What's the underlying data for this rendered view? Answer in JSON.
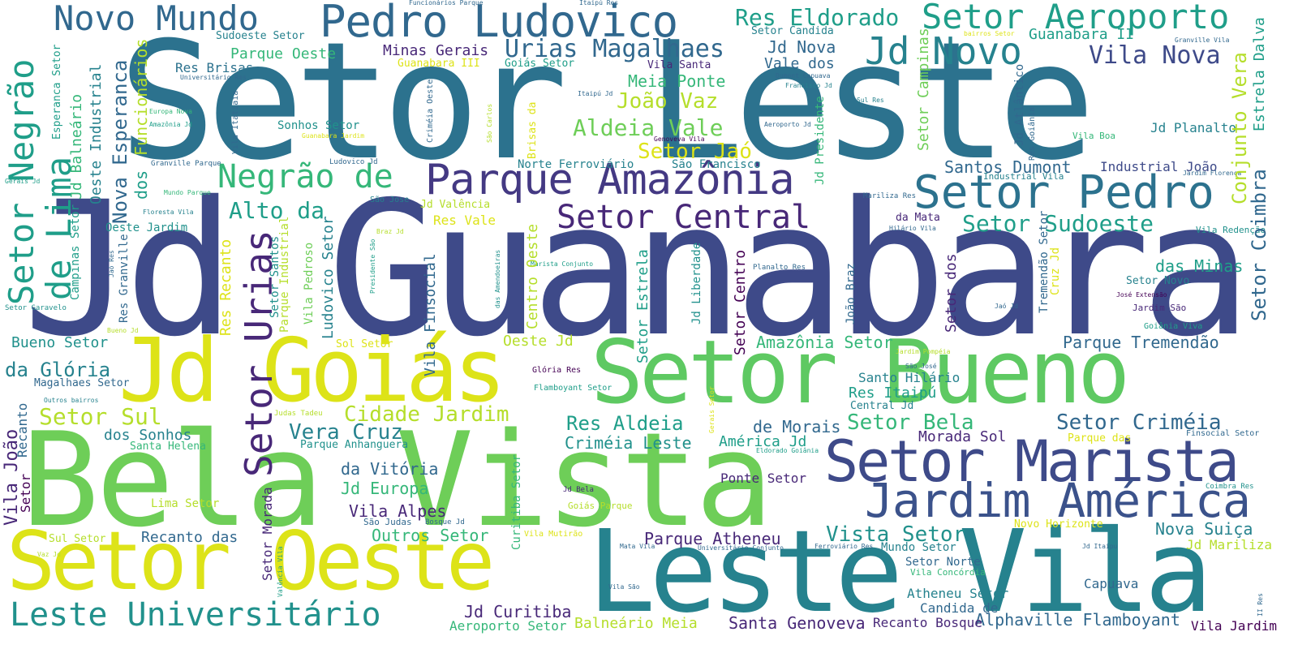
{
  "palette": {
    "dark_purple": "#440154",
    "indigo": "#3e4a89",
    "slate_blue": "#31688e",
    "teal": "#26828e",
    "sea_green": "#1f9e89",
    "green": "#35b779",
    "light_green": "#6ece58",
    "lime": "#b5de2b",
    "yellow": "#dde318",
    "background": "#ffffff"
  },
  "words": [
    {
      "text": "Jd Guanabara"
    },
    {
      "text": "Setor Leste"
    },
    {
      "text": "Bela Vista"
    },
    {
      "text": "Setor Bueno"
    },
    {
      "text": "Jd Goiás"
    },
    {
      "text": "Setor Oeste"
    },
    {
      "text": "Leste Vila"
    },
    {
      "text": "Setor Marista"
    },
    {
      "text": "Jardim América"
    },
    {
      "text": "Pedro Ludovico"
    },
    {
      "text": "Novo Mundo"
    },
    {
      "text": "Setor Aeroporto"
    },
    {
      "text": "Parque Amazônia"
    },
    {
      "text": "Setor Pedro"
    },
    {
      "text": "Setor Central"
    },
    {
      "text": "Negrão de"
    },
    {
      "text": "Leste Universitário"
    },
    {
      "text": "Jd Novo"
    },
    {
      "text": "Res Eldorado"
    },
    {
      "text": "Urias Magalhaes"
    },
    {
      "text": "Vila Nova"
    },
    {
      "text": "Aldeia Vale"
    },
    {
      "text": "João Vaz"
    },
    {
      "text": "Setor Jaó"
    },
    {
      "text": "Meia Ponte"
    },
    {
      "text": "Alto da"
    },
    {
      "text": "Setor Sudoeste"
    },
    {
      "text": "Santos Dumont"
    },
    {
      "text": "Industrial João"
    },
    {
      "text": "Jd Planalto"
    },
    {
      "text": "Cidade Jardim"
    },
    {
      "text": "Setor Sul"
    },
    {
      "text": "Vera Cruz"
    },
    {
      "text": "Res Aldeia"
    },
    {
      "text": "Setor Bela"
    },
    {
      "text": "Setor Criméia"
    },
    {
      "text": "Criméia Leste"
    },
    {
      "text": "Morada Sol"
    },
    {
      "text": "América Jd"
    },
    {
      "text": "de Morais"
    },
    {
      "text": "da Glória"
    },
    {
      "text": "Bueno Setor"
    },
    {
      "text": "Amazônia Setor"
    },
    {
      "text": "Parque Tremendão"
    },
    {
      "text": "das Minas"
    },
    {
      "text": "Santo Hilário"
    },
    {
      "text": "Res Itaipú"
    },
    {
      "text": "Vista Setor"
    },
    {
      "text": "Parque Atheneu"
    },
    {
      "text": "Ponte Setor"
    },
    {
      "text": "Nova Suiça"
    },
    {
      "text": "Jd Marilizа"
    },
    {
      "text": "Outros Setor"
    },
    {
      "text": "Recanto das"
    },
    {
      "text": "Vila Alpes"
    },
    {
      "text": "Jd Europa"
    },
    {
      "text": "da Vitória"
    },
    {
      "text": "Jd Curitiba"
    },
    {
      "text": "Santa Genoveva"
    },
    {
      "text": "Alphaville Flamboyant"
    },
    {
      "text": "Balneário Meia"
    },
    {
      "text": "Aeroporto Setor"
    },
    {
      "text": "Recanto Bosque"
    },
    {
      "text": "Vila Jardim"
    },
    {
      "text": "Atheneu Setor"
    },
    {
      "text": "Candida de"
    },
    {
      "text": "Capuava"
    },
    {
      "text": "Setor Norte"
    },
    {
      "text": "Mundo Setor"
    },
    {
      "text": "Guanabara II"
    },
    {
      "text": "Minas Gerais"
    },
    {
      "text": "Parque Oeste"
    },
    {
      "text": "Res Brisas"
    },
    {
      "text": "Sonhos Setor"
    },
    {
      "text": "Sudoeste Setor"
    },
    {
      "text": "Guanabara III"
    },
    {
      "text": "Goiás Setor"
    },
    {
      "text": "Vila Santa"
    },
    {
      "text": "Jd Nova"
    },
    {
      "text": "Vale dos"
    },
    {
      "text": "Setor Candida"
    },
    {
      "text": "Norte Ferroviário"
    },
    {
      "text": "São Francisco"
    },
    {
      "text": "Res Vale"
    },
    {
      "text": "Jd Valência"
    },
    {
      "text": "Oeste Jardim"
    },
    {
      "text": "Sol Setor"
    },
    {
      "text": "Oeste Jd"
    },
    {
      "text": "Magalhaes Setor"
    },
    {
      "text": "dos Sonhos"
    },
    {
      "text": "Santa Helena"
    },
    {
      "text": "Parque Anhanguera"
    },
    {
      "text": "Lima Setor"
    },
    {
      "text": "Sul Setor"
    },
    {
      "text": "São Judas"
    },
    {
      "text": "Bosque Jd"
    },
    {
      "text": "Goiás Parque"
    },
    {
      "text": "Vila Mutirão"
    },
    {
      "text": "Jd Bela"
    },
    {
      "text": "Glória Res"
    },
    {
      "text": "Flamboyant Setor"
    },
    {
      "text": "Central Jd"
    },
    {
      "text": "Parque das"
    },
    {
      "text": "Finsocial Setor"
    },
    {
      "text": "Novo Horizonte"
    },
    {
      "text": "Vila Boa"
    },
    {
      "text": "Setor Novo"
    },
    {
      "text": "Jardim São"
    },
    {
      "text": "Goiânia Viva"
    },
    {
      "text": "Vila Redenção"
    },
    {
      "text": "Industrial Vila"
    },
    {
      "text": "Jardim Florença"
    },
    {
      "text": "da Mata"
    },
    {
      "text": "Mariliza Res"
    },
    {
      "text": "Hilário Vila"
    },
    {
      "text": "Planalto Res"
    },
    {
      "text": "José Extensão"
    },
    {
      "text": "Jaó Jd"
    },
    {
      "text": "Jardim Pompéia"
    },
    {
      "text": "São José"
    },
    {
      "text": "Eldorado Goiânia"
    },
    {
      "text": "Coimbra Res"
    },
    {
      "text": "Judas Tadeu"
    },
    {
      "text": "Outros bairros"
    },
    {
      "text": "Bueno Jd"
    },
    {
      "text": "Setor Garavelo"
    },
    {
      "text": "Floresta Vila"
    },
    {
      "text": "Mundo Parque"
    },
    {
      "text": "Granville Parque"
    },
    {
      "text": "Ludovico Jd"
    },
    {
      "text": "São Jose"
    },
    {
      "text": "Braz Jd"
    },
    {
      "text": "Marista Conjunto"
    },
    {
      "text": "Genoveva Vila"
    },
    {
      "text": "Aeroporto Jd"
    },
    {
      "text": "Itaipú Jd"
    },
    {
      "text": "Dumont Capuava"
    },
    {
      "text": "Francisco Jd"
    },
    {
      "text": "Sul Res"
    },
    {
      "text": "Funcionários Parque"
    },
    {
      "text": "Itaipú Res"
    },
    {
      "text": "bairros Setor"
    },
    {
      "text": "Granville Vila"
    },
    {
      "text": "Universitário Res"
    },
    {
      "text": "Europa Nova"
    },
    {
      "text": "Amazônia Jd"
    },
    {
      "text": "Guanabara Jardim"
    },
    {
      "text": "Gerais Jd"
    },
    {
      "text": "Mata Vila"
    },
    {
      "text": "Universitário Conjunto"
    },
    {
      "text": "Ferroviário Res"
    },
    {
      "text": "Vila Concórdia"
    },
    {
      "text": "Vila São"
    },
    {
      "text": "Vaz Jd"
    },
    {
      "text": "Jd Itaipu"
    },
    {
      "text": "Setor Negrão"
    },
    {
      "text": "de Lima"
    },
    {
      "text": "Jd Balneário"
    },
    {
      "text": "Oeste Industrial"
    },
    {
      "text": "Nova Esperanca"
    },
    {
      "text": "Funcionários"
    },
    {
      "text": "dos"
    },
    {
      "text": "Esperanca Setor"
    },
    {
      "text": "Campinas Setor"
    },
    {
      "text": "Res Granville"
    },
    {
      "text": "Jaó Res"
    },
    {
      "text": "Vila João"
    },
    {
      "text": "Recanto"
    },
    {
      "text": "Setor"
    },
    {
      "text": "Setor Urias"
    },
    {
      "text": "Res Recanto"
    },
    {
      "text": "Parque Industrial"
    },
    {
      "text": "Setor Santos"
    },
    {
      "text": "Vila Pedroso"
    },
    {
      "text": "Ludovico Setor"
    },
    {
      "text": "Presidente São"
    },
    {
      "text": "das Amendoeiras"
    },
    {
      "text": "Vila Finsocial"
    },
    {
      "text": "Centro Oeste"
    },
    {
      "text": "Setor Morada"
    },
    {
      "text": "Valência Vila"
    },
    {
      "text": "Curitiba Setor"
    },
    {
      "text": "Setor Estrela"
    },
    {
      "text": "Jd Liberdade"
    },
    {
      "text": "Setor Centro"
    },
    {
      "text": "João Braz"
    },
    {
      "text": "Setor dos"
    },
    {
      "text": "Tremendão Setor"
    },
    {
      "text": "Cruz Jd"
    },
    {
      "text": "Gerais Setor"
    },
    {
      "text": "Vila Itatiaia"
    },
    {
      "text": "Criméia Oeste"
    },
    {
      "text": "São Carlos"
    },
    {
      "text": "Brisas da"
    },
    {
      "text": "Jd Presidente"
    },
    {
      "text": "Setor Campinas"
    },
    {
      "text": "Jd Atlântico"
    },
    {
      "text": "Res Goiânia"
    },
    {
      "text": "Conjunto Vera"
    },
    {
      "text": "Estrela Dalva"
    },
    {
      "text": "Setor Coimbra"
    },
    {
      "text": "II Res"
    }
  ]
}
